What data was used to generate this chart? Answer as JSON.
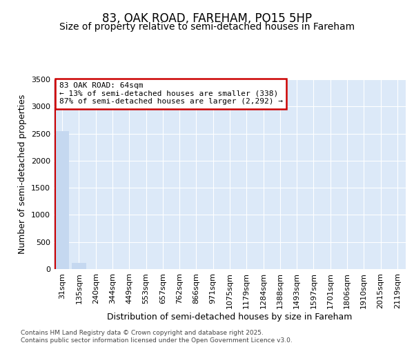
{
  "title1": "83, OAK ROAD, FAREHAM, PO15 5HP",
  "title2": "Size of property relative to semi-detached houses in Fareham",
  "xlabel": "Distribution of semi-detached houses by size in Fareham",
  "ylabel": "Number of semi-detached properties",
  "categories": [
    "31sqm",
    "135sqm",
    "240sqm",
    "344sqm",
    "449sqm",
    "553sqm",
    "657sqm",
    "762sqm",
    "866sqm",
    "971sqm",
    "1075sqm",
    "1179sqm",
    "1284sqm",
    "1388sqm",
    "1493sqm",
    "1597sqm",
    "1701sqm",
    "1806sqm",
    "1910sqm",
    "2015sqm",
    "2119sqm"
  ],
  "values": [
    2540,
    110,
    0,
    0,
    0,
    0,
    0,
    0,
    0,
    0,
    0,
    0,
    0,
    0,
    0,
    0,
    0,
    0,
    0,
    0,
    0
  ],
  "bar_color": "#c5d8f0",
  "annotation_text": "83 OAK ROAD: 64sqm\n← 13% of semi-detached houses are smaller (338)\n87% of semi-detached houses are larger (2,292) →",
  "annotation_box_color": "#cc0000",
  "ylim": [
    0,
    3500
  ],
  "yticks": [
    0,
    500,
    1000,
    1500,
    2000,
    2500,
    3000,
    3500
  ],
  "plot_background": "#dce9f8",
  "grid_color": "#ffffff",
  "footer": "Contains HM Land Registry data © Crown copyright and database right 2025.\nContains public sector information licensed under the Open Government Licence v3.0.",
  "title_fontsize": 12,
  "subtitle_fontsize": 10,
  "axis_label_fontsize": 9,
  "tick_fontsize": 8,
  "annotation_fontsize": 8
}
